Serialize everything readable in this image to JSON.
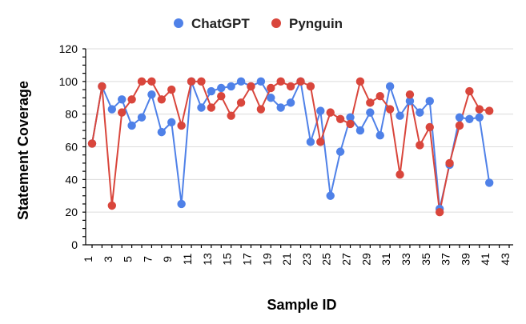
{
  "chart_data": {
    "type": "line",
    "title": "",
    "xlabel": "Sample ID",
    "ylabel": "Statement Coverage",
    "ylim": [
      0,
      120
    ],
    "yticks": [
      0,
      20,
      40,
      60,
      80,
      100,
      120
    ],
    "xlim": [
      1,
      43
    ],
    "xtick_labels": [
      "1",
      "3",
      "5",
      "7",
      "9",
      "11",
      "13",
      "15",
      "17",
      "19",
      "21",
      "23",
      "25",
      "27",
      "29",
      "31",
      "33",
      "35",
      "37",
      "39",
      "41",
      "43"
    ],
    "grid": true,
    "legend_position": "top-center",
    "x": [
      1,
      2,
      3,
      4,
      5,
      6,
      7,
      8,
      9,
      10,
      11,
      12,
      13,
      14,
      15,
      16,
      17,
      18,
      19,
      20,
      21,
      22,
      23,
      24,
      25,
      26,
      27,
      28,
      29,
      30,
      31,
      32,
      33,
      34,
      35,
      36,
      37,
      38,
      39,
      40,
      41,
      42,
      43
    ],
    "series": [
      {
        "name": "ChatGPT",
        "color": "#4f81e8",
        "values": [
          62,
          97,
          83,
          89,
          73,
          78,
          92,
          69,
          75,
          25,
          100,
          84,
          94,
          96,
          97,
          100,
          97,
          100,
          90,
          84,
          87,
          100,
          63,
          82,
          30,
          57,
          78,
          70,
          81,
          67,
          97,
          79,
          88,
          81,
          88,
          22,
          49,
          78,
          77,
          78,
          38,
          null,
          null
        ]
      },
      {
        "name": "Pynguin",
        "color": "#d9463c",
        "values": [
          62,
          97,
          24,
          81,
          89,
          100,
          100,
          89,
          95,
          73,
          100,
          100,
          84,
          91,
          79,
          87,
          97,
          83,
          96,
          100,
          97,
          100,
          97,
          63,
          81,
          77,
          74,
          100,
          87,
          91,
          83,
          43,
          92,
          61,
          72,
          20,
          50,
          73,
          94,
          83,
          82,
          null,
          null
        ]
      }
    ]
  }
}
